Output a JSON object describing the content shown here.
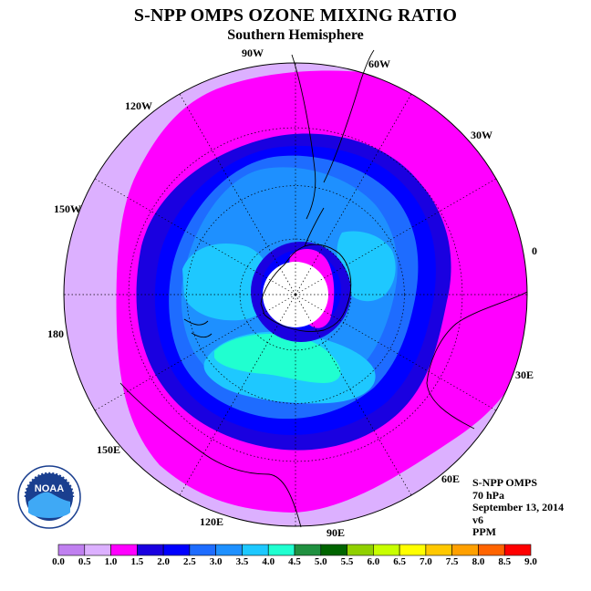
{
  "title": "S-NPP OMPS OZONE MIXING RATIO",
  "subtitle": "Southern Hemisphere",
  "longitude_labels": [
    {
      "text": "90W",
      "lon": -90
    },
    {
      "text": "60W",
      "lon": -60
    },
    {
      "text": "30W",
      "lon": -30
    },
    {
      "text": "0",
      "lon": 0
    },
    {
      "text": "30E",
      "lon": 30
    },
    {
      "text": "60E",
      "lon": 60
    },
    {
      "text": "90E",
      "lon": 90
    },
    {
      "text": "120E",
      "lon": 120
    },
    {
      "text": "150E",
      "lon": 150
    },
    {
      "text": "180",
      "lon": 180
    },
    {
      "text": "150W",
      "lon": -150
    },
    {
      "text": "120W",
      "lon": -120
    }
  ],
  "info": {
    "instrument": "S-NPP OMPS",
    "level": "70 hPa",
    "date": "September 13, 2014",
    "version": "v6",
    "units": "PPM"
  },
  "logo": {
    "text": "NOAA",
    "icon": "noaa-logo-icon"
  },
  "colorbar": {
    "ticks": [
      "0.0",
      "0.5",
      "1.0",
      "1.5",
      "2.0",
      "2.5",
      "3.0",
      "3.5",
      "4.0",
      "4.5",
      "5.0",
      "5.5",
      "6.0",
      "6.5",
      "7.0",
      "7.5",
      "8.0",
      "8.5",
      "9.0"
    ],
    "colors": [
      "#c080f0",
      "#dcb0ff",
      "#ff00ff",
      "#1a00e0",
      "#0000ff",
      "#1e6cff",
      "#1e90ff",
      "#1ec8ff",
      "#20ffd0",
      "#209040",
      "#006400",
      "#90d000",
      "#c8ff00",
      "#ffff00",
      "#ffc800",
      "#ffa000",
      "#ff6400",
      "#ff0000",
      "#a05030"
    ]
  },
  "map_colors": {
    "outside": "#dcb0ff",
    "band_1_0": "#ff00ff",
    "band_1_5": "#1a00e0",
    "band_2_0": "#0000ff",
    "band_2_5": "#1e6cff",
    "band_3_0": "#1e90ff",
    "band_3_5": "#1ec8ff",
    "band_4_0": "#20ffd0",
    "polar_cap": "#ffffff"
  }
}
